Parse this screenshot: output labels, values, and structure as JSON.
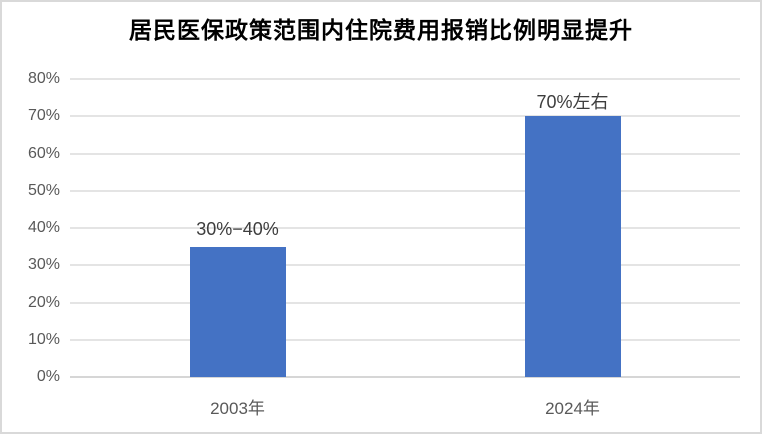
{
  "title": "居民医保政策范围内住院费用报销比例明显提升",
  "colors": {
    "bar": "#4472c4",
    "gridline": "#e4e4e4",
    "baseline": "#d6d6d6",
    "axis_label": "#595959",
    "data_label": "#3d3d3d",
    "title_color": "#000000",
    "frame_border": "#d9d9d9",
    "background": "#ffffff"
  },
  "chart_data": {
    "type": "bar",
    "title": "居民医保政策范围内住院费用报销比例明显提升",
    "categories": [
      "2003年",
      "2024年"
    ],
    "values": [
      35,
      70
    ],
    "data_labels": [
      "30%−40%",
      "70%左右"
    ],
    "xlabel": "",
    "ylabel": "",
    "ylim": [
      0,
      80
    ],
    "ytick_step": 10,
    "ytick_labels": [
      "0%",
      "10%",
      "20%",
      "30%",
      "40%",
      "50%",
      "60%",
      "70%",
      "80%"
    ],
    "grid": true,
    "legend": false,
    "bar_count": 2
  }
}
